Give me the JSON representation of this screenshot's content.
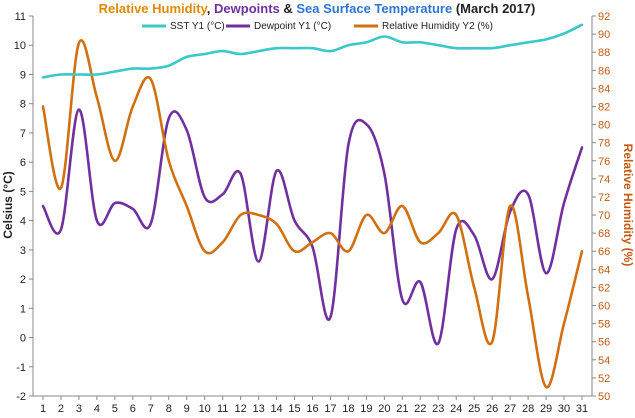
{
  "chart_data": {
    "type": "line",
    "title_parts": [
      {
        "text": "Relative Humidity",
        "color": "#E08A00"
      },
      {
        "text": ", ",
        "color": "#222222"
      },
      {
        "text": "Dewpoints",
        "color": "#7030A0"
      },
      {
        "text": " & ",
        "color": "#222222"
      },
      {
        "text": "Sea Surface Temperature",
        "color": "#2E75D6"
      },
      {
        "text": " (March 2017)",
        "color": "#222222"
      }
    ],
    "ylabel": "Celsius (°C)",
    "y2label": "Relative Humidity (%)",
    "y2label_color": "#C55A11",
    "x": [
      1,
      2,
      3,
      4,
      5,
      6,
      7,
      8,
      9,
      10,
      11,
      12,
      13,
      14,
      15,
      16,
      17,
      18,
      19,
      20,
      21,
      22,
      23,
      24,
      25,
      26,
      27,
      28,
      29,
      30,
      31
    ],
    "ylim": [
      -2,
      11
    ],
    "y2lim": [
      50,
      92
    ],
    "grid": false,
    "legend_position": "top",
    "series": [
      {
        "name": "SST Y1 (°C)",
        "axis": "left",
        "color": "#3CC8C8",
        "values": [
          8.9,
          9.0,
          9.0,
          9.0,
          9.1,
          9.2,
          9.2,
          9.3,
          9.6,
          9.7,
          9.8,
          9.7,
          9.8,
          9.9,
          9.9,
          9.9,
          9.8,
          10.0,
          10.1,
          10.3,
          10.1,
          10.1,
          10.0,
          9.9,
          9.9,
          9.9,
          10.0,
          10.1,
          10.2,
          10.4,
          10.7
        ]
      },
      {
        "name": "Dewpoint Y1 (°C)",
        "axis": "left",
        "color": "#7030A0",
        "values": [
          4.5,
          3.7,
          7.8,
          4.0,
          4.6,
          4.4,
          3.9,
          7.5,
          7.1,
          4.8,
          4.9,
          5.6,
          2.6,
          5.7,
          4.0,
          3.1,
          0.7,
          6.6,
          7.3,
          5.6,
          1.3,
          1.9,
          -0.2,
          3.7,
          3.5,
          2.0,
          4.3,
          4.9,
          2.2,
          4.6,
          6.5
        ]
      },
      {
        "name": "Relative Humidity Y2 (%)",
        "axis": "right",
        "color": "#D07010",
        "values": [
          82,
          73,
          89,
          83,
          76,
          82,
          85,
          76,
          71,
          66,
          67,
          70,
          70,
          69,
          66,
          67,
          68,
          66,
          70,
          68,
          71,
          67,
          68,
          70,
          62,
          56,
          71,
          61,
          51,
          58,
          66
        ]
      }
    ],
    "yticks": [
      -2,
      -1,
      0,
      1,
      2,
      3,
      4,
      5,
      6,
      7,
      8,
      9,
      10,
      11
    ],
    "y2ticks": [
      50,
      52,
      54,
      56,
      58,
      60,
      62,
      64,
      66,
      68,
      70,
      72,
      74,
      76,
      78,
      80,
      82,
      84,
      86,
      88,
      90,
      92
    ]
  }
}
